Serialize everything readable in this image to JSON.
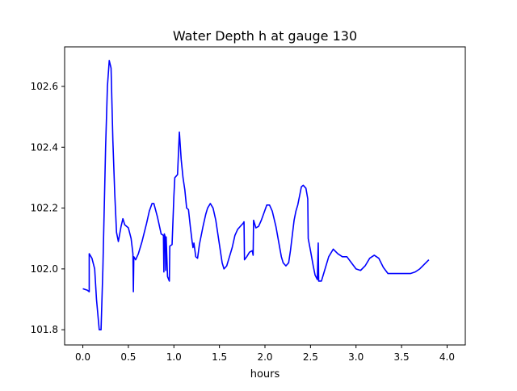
{
  "chart_data": {
    "type": "line",
    "title": "Water Depth h at gauge 130",
    "xlabel": "hours",
    "ylabel": "",
    "xlim": [
      -0.2,
      4.2
    ],
    "ylim": [
      101.75,
      102.73
    ],
    "xticks": [
      0.0,
      0.5,
      1.0,
      1.5,
      2.0,
      2.5,
      3.0,
      3.5,
      4.0
    ],
    "xtick_labels": [
      "0.0",
      "0.5",
      "1.0",
      "1.5",
      "2.0",
      "2.5",
      "3.0",
      "3.5",
      "4.0"
    ],
    "yticks": [
      101.8,
      102.0,
      102.2,
      102.4,
      102.6
    ],
    "ytick_labels": [
      "101.8",
      "102.0",
      "102.2",
      "102.4",
      "102.6"
    ],
    "grid": false,
    "legend": "none",
    "series": [
      {
        "color": "#0000ff",
        "points": [
          [
            0.0,
            101.935
          ],
          [
            0.05,
            101.93
          ],
          [
            0.07,
            101.925
          ],
          [
            0.07,
            102.05
          ],
          [
            0.1,
            102.035
          ],
          [
            0.13,
            102.0
          ],
          [
            0.15,
            101.9
          ],
          [
            0.18,
            101.8
          ],
          [
            0.2,
            101.8
          ],
          [
            0.22,
            102.0
          ],
          [
            0.25,
            102.4
          ],
          [
            0.27,
            102.6
          ],
          [
            0.29,
            102.685
          ],
          [
            0.31,
            102.66
          ],
          [
            0.33,
            102.42
          ],
          [
            0.35,
            102.25
          ],
          [
            0.37,
            102.12
          ],
          [
            0.39,
            102.09
          ],
          [
            0.42,
            102.14
          ],
          [
            0.44,
            102.165
          ],
          [
            0.46,
            102.145
          ],
          [
            0.5,
            102.135
          ],
          [
            0.53,
            102.1
          ],
          [
            0.55,
            102.05
          ],
          [
            0.555,
            101.925
          ],
          [
            0.56,
            102.04
          ],
          [
            0.58,
            102.03
          ],
          [
            0.61,
            102.05
          ],
          [
            0.65,
            102.09
          ],
          [
            0.7,
            102.15
          ],
          [
            0.73,
            102.19
          ],
          [
            0.76,
            102.215
          ],
          [
            0.78,
            102.215
          ],
          [
            0.82,
            102.17
          ],
          [
            0.86,
            102.115
          ],
          [
            0.885,
            102.11
          ],
          [
            0.89,
            101.99
          ],
          [
            0.895,
            102.115
          ],
          [
            0.905,
            102.105
          ],
          [
            0.91,
            101.995
          ],
          [
            0.915,
            102.105
          ],
          [
            0.93,
            101.975
          ],
          [
            0.95,
            101.96
          ],
          [
            0.955,
            102.075
          ],
          [
            0.98,
            102.08
          ],
          [
            1.0,
            102.24
          ],
          [
            1.01,
            102.3
          ],
          [
            1.04,
            102.31
          ],
          [
            1.06,
            102.45
          ],
          [
            1.08,
            102.36
          ],
          [
            1.1,
            102.3
          ],
          [
            1.12,
            102.26
          ],
          [
            1.14,
            102.2
          ],
          [
            1.16,
            102.195
          ],
          [
            1.18,
            102.14
          ],
          [
            1.2,
            102.09
          ],
          [
            1.21,
            102.07
          ],
          [
            1.22,
            102.085
          ],
          [
            1.24,
            102.04
          ],
          [
            1.26,
            102.035
          ],
          [
            1.28,
            102.08
          ],
          [
            1.32,
            102.14
          ],
          [
            1.35,
            102.18
          ],
          [
            1.37,
            102.2
          ],
          [
            1.4,
            102.215
          ],
          [
            1.43,
            102.2
          ],
          [
            1.46,
            102.16
          ],
          [
            1.5,
            102.08
          ],
          [
            1.53,
            102.02
          ],
          [
            1.55,
            102.0
          ],
          [
            1.58,
            102.01
          ],
          [
            1.61,
            102.04
          ],
          [
            1.64,
            102.07
          ],
          [
            1.67,
            102.11
          ],
          [
            1.7,
            102.13
          ],
          [
            1.73,
            102.14
          ],
          [
            1.76,
            102.15
          ],
          [
            1.77,
            102.155
          ],
          [
            1.775,
            102.03
          ],
          [
            1.8,
            102.04
          ],
          [
            1.83,
            102.055
          ],
          [
            1.86,
            102.06
          ],
          [
            1.87,
            102.045
          ],
          [
            1.875,
            102.16
          ],
          [
            1.9,
            102.135
          ],
          [
            1.93,
            102.14
          ],
          [
            1.96,
            102.16
          ],
          [
            1.99,
            102.185
          ],
          [
            2.02,
            102.21
          ],
          [
            2.05,
            102.21
          ],
          [
            2.08,
            102.19
          ],
          [
            2.12,
            102.14
          ],
          [
            2.15,
            102.09
          ],
          [
            2.18,
            102.04
          ],
          [
            2.2,
            102.02
          ],
          [
            2.23,
            102.01
          ],
          [
            2.26,
            102.02
          ],
          [
            2.28,
            102.06
          ],
          [
            2.3,
            102.11
          ],
          [
            2.32,
            102.16
          ],
          [
            2.34,
            102.19
          ],
          [
            2.36,
            102.21
          ],
          [
            2.38,
            102.24
          ],
          [
            2.4,
            102.27
          ],
          [
            2.42,
            102.275
          ],
          [
            2.45,
            102.265
          ],
          [
            2.47,
            102.23
          ],
          [
            2.475,
            102.1
          ],
          [
            2.5,
            102.06
          ],
          [
            2.53,
            102.01
          ],
          [
            2.55,
            101.98
          ],
          [
            2.575,
            101.965
          ],
          [
            2.585,
            102.085
          ],
          [
            2.59,
            101.96
          ],
          [
            2.62,
            101.96
          ],
          [
            2.65,
            101.99
          ],
          [
            2.7,
            102.04
          ],
          [
            2.75,
            102.065
          ],
          [
            2.8,
            102.05
          ],
          [
            2.85,
            102.04
          ],
          [
            2.9,
            102.04
          ],
          [
            2.95,
            102.02
          ],
          [
            3.0,
            102.0
          ],
          [
            3.05,
            101.995
          ],
          [
            3.1,
            102.01
          ],
          [
            3.15,
            102.035
          ],
          [
            3.2,
            102.045
          ],
          [
            3.25,
            102.035
          ],
          [
            3.3,
            102.005
          ],
          [
            3.35,
            101.985
          ],
          [
            3.4,
            101.985
          ],
          [
            3.45,
            101.985
          ],
          [
            3.5,
            101.985
          ],
          [
            3.55,
            101.985
          ],
          [
            3.6,
            101.985
          ],
          [
            3.65,
            101.99
          ],
          [
            3.7,
            102.0
          ],
          [
            3.75,
            102.015
          ],
          [
            3.8,
            102.03
          ]
        ]
      }
    ]
  }
}
